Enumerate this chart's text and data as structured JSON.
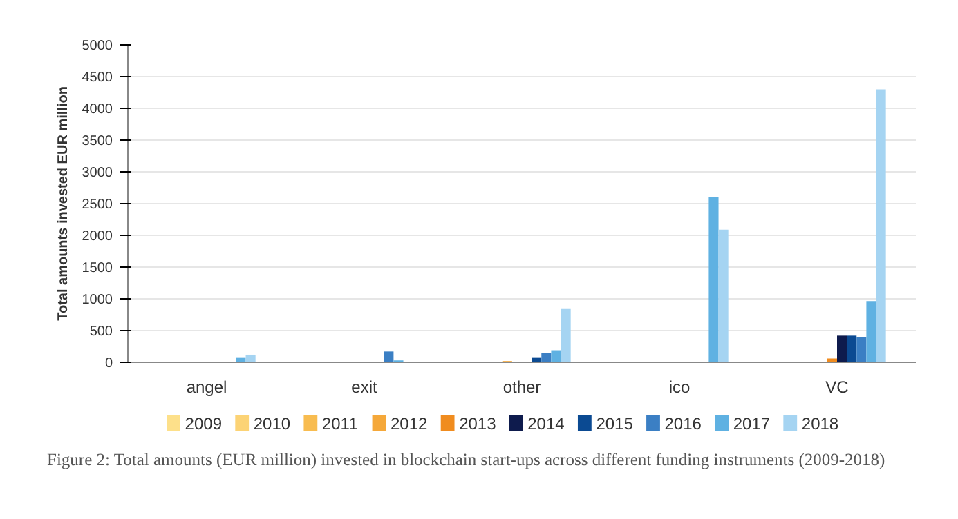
{
  "chart_data": {
    "type": "bar",
    "ylabel": "Total amounts invested EUR million",
    "categories": [
      "angel",
      "exit",
      "other",
      "ico",
      "VC"
    ],
    "series": [
      {
        "name": "2009",
        "color": "#fde08a",
        "values": [
          0,
          0,
          0,
          0,
          0
        ]
      },
      {
        "name": "2010",
        "color": "#fcd375",
        "values": [
          0,
          0,
          0,
          0,
          0
        ]
      },
      {
        "name": "2011",
        "color": "#f8bc50",
        "values": [
          0,
          0,
          0,
          0,
          0
        ]
      },
      {
        "name": "2012",
        "color": "#f5a83a",
        "values": [
          0,
          0,
          20,
          0,
          0
        ]
      },
      {
        "name": "2013",
        "color": "#f08c1f",
        "values": [
          0,
          0,
          0,
          0,
          60
        ]
      },
      {
        "name": "2014",
        "color": "#0e1b4d",
        "values": [
          0,
          0,
          0,
          0,
          420
        ]
      },
      {
        "name": "2015",
        "color": "#0b4a92",
        "values": [
          0,
          0,
          80,
          0,
          420
        ]
      },
      {
        "name": "2016",
        "color": "#3b7fc4",
        "values": [
          0,
          170,
          150,
          0,
          395
        ]
      },
      {
        "name": "2017",
        "color": "#5fb1e2",
        "values": [
          80,
          30,
          190,
          2600,
          965
        ]
      },
      {
        "name": "2018",
        "color": "#a5d4f2",
        "values": [
          120,
          0,
          850,
          2090,
          4300
        ]
      }
    ],
    "ylim": [
      0,
      5000
    ],
    "yticks": [
      0,
      500,
      1000,
      1500,
      2000,
      2500,
      3000,
      3500,
      4000,
      4500,
      5000
    ],
    "grid": "y",
    "legend": "bottom",
    "annotations": [
      "Figure 2: Total amounts (EUR million) invested in blockchain start-ups across different funding instruments (2009-2018)"
    ]
  }
}
